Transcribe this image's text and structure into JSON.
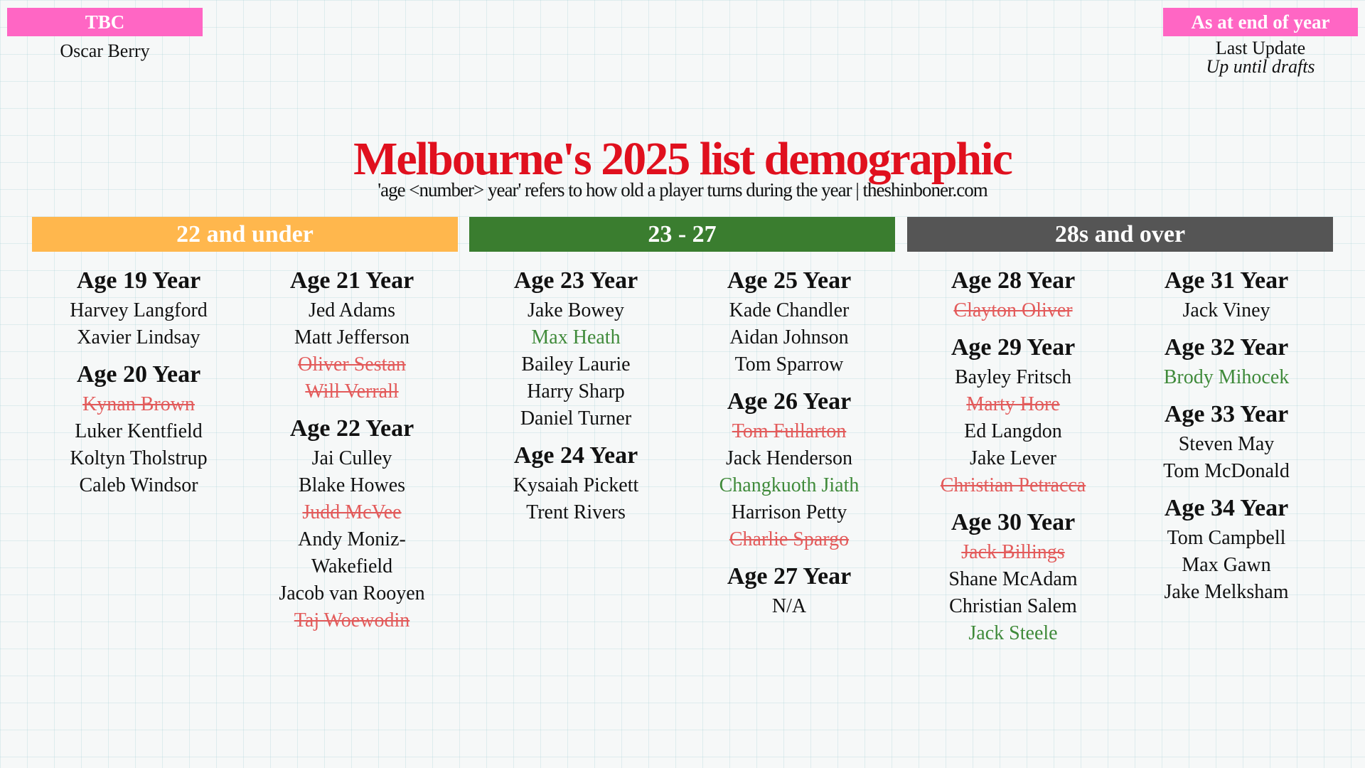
{
  "tbc": {
    "label": "TBC",
    "name": "Oscar Berry"
  },
  "update": {
    "label": "As at end of year",
    "line1": "Last Update",
    "line2": "Up until drafts"
  },
  "title": "Melbourne's 2025 list demographic",
  "subtitle": "'age <number> year' refers to how old a player turns during the year | theshinboner.com",
  "colors": {
    "under22": "#ffb74d",
    "mid": "#3a7d2f",
    "over28": "#555555",
    "removed": "#e35b5b",
    "new": "#3f8a3a",
    "title": "#e0101e",
    "tag": "#ff66c4"
  },
  "bands": [
    "22 and under",
    "23 - 27",
    "28s and over"
  ],
  "columns": [
    [
      {
        "h": "Age 19 Year",
        "n": [
          [
            "Harvey Langford",
            ""
          ],
          [
            "Xavier Lindsay",
            ""
          ]
        ]
      },
      {
        "h": "Age 20 Year",
        "n": [
          [
            "Kynan Brown",
            "removed"
          ],
          [
            "Luker Kentfield",
            ""
          ],
          [
            "Koltyn Tholstrup",
            ""
          ],
          [
            "Caleb Windsor",
            ""
          ]
        ]
      }
    ],
    [
      {
        "h": "Age 21 Year",
        "n": [
          [
            "Jed Adams",
            ""
          ],
          [
            "Matt Jefferson",
            ""
          ],
          [
            "Oliver Sestan",
            "removed"
          ],
          [
            "Will Verrall",
            "removed"
          ]
        ]
      },
      {
        "h": "Age 22 Year",
        "n": [
          [
            "Jai Culley",
            ""
          ],
          [
            "Blake Howes",
            ""
          ],
          [
            "Judd McVee",
            "removed"
          ],
          [
            "Andy Moniz-",
            ""
          ],
          [
            "Wakefield",
            ""
          ],
          [
            "Jacob van Rooyen",
            ""
          ],
          [
            "Taj Woewodin",
            "removed"
          ]
        ]
      }
    ],
    [
      {
        "h": "Age 23 Year",
        "n": [
          [
            "Jake Bowey",
            ""
          ],
          [
            "Max Heath",
            "new"
          ],
          [
            "Bailey Laurie",
            ""
          ],
          [
            "Harry Sharp",
            ""
          ],
          [
            "Daniel Turner",
            ""
          ]
        ]
      },
      {
        "h": "Age 24 Year",
        "n": [
          [
            "Kysaiah Pickett",
            ""
          ],
          [
            "Trent Rivers",
            ""
          ]
        ]
      }
    ],
    [
      {
        "h": "Age 25 Year",
        "n": [
          [
            "Kade Chandler",
            ""
          ],
          [
            "Aidan Johnson",
            ""
          ],
          [
            "Tom Sparrow",
            ""
          ]
        ]
      },
      {
        "h": "Age 26 Year",
        "n": [
          [
            "Tom Fullarton",
            "removed"
          ],
          [
            "Jack Henderson",
            ""
          ],
          [
            "Changkuoth Jiath",
            "new"
          ],
          [
            "Harrison Petty",
            ""
          ],
          [
            "Charlie Spargo",
            "removed"
          ]
        ]
      },
      {
        "h": "Age 27 Year",
        "n": [
          [
            "N/A",
            ""
          ]
        ]
      }
    ],
    [
      {
        "h": "Age 28 Year",
        "n": [
          [
            "Clayton Oliver",
            "removed"
          ]
        ]
      },
      {
        "h": "Age 29 Year",
        "n": [
          [
            "Bayley Fritsch",
            ""
          ],
          [
            "Marty Hore",
            "removed"
          ],
          [
            "Ed Langdon",
            ""
          ],
          [
            "Jake Lever",
            ""
          ],
          [
            "Christian Petracca",
            "removed"
          ]
        ]
      },
      {
        "h": "Age 30 Year",
        "n": [
          [
            "Jack Billings",
            "removed"
          ],
          [
            "Shane McAdam",
            ""
          ],
          [
            "Christian Salem",
            ""
          ],
          [
            "Jack Steele",
            "new"
          ]
        ]
      }
    ],
    [
      {
        "h": "Age 31 Year",
        "n": [
          [
            "Jack Viney",
            ""
          ]
        ]
      },
      {
        "h": "Age 32 Year",
        "n": [
          [
            "Brody Mihocek",
            "new"
          ]
        ]
      },
      {
        "h": "Age 33 Year",
        "n": [
          [
            "Steven May",
            ""
          ],
          [
            "Tom McDonald",
            ""
          ]
        ]
      },
      {
        "h": "Age 34 Year",
        "n": [
          [
            "Tom Campbell",
            ""
          ],
          [
            "Max Gawn",
            ""
          ],
          [
            "Jake Melksham",
            ""
          ]
        ]
      }
    ]
  ]
}
